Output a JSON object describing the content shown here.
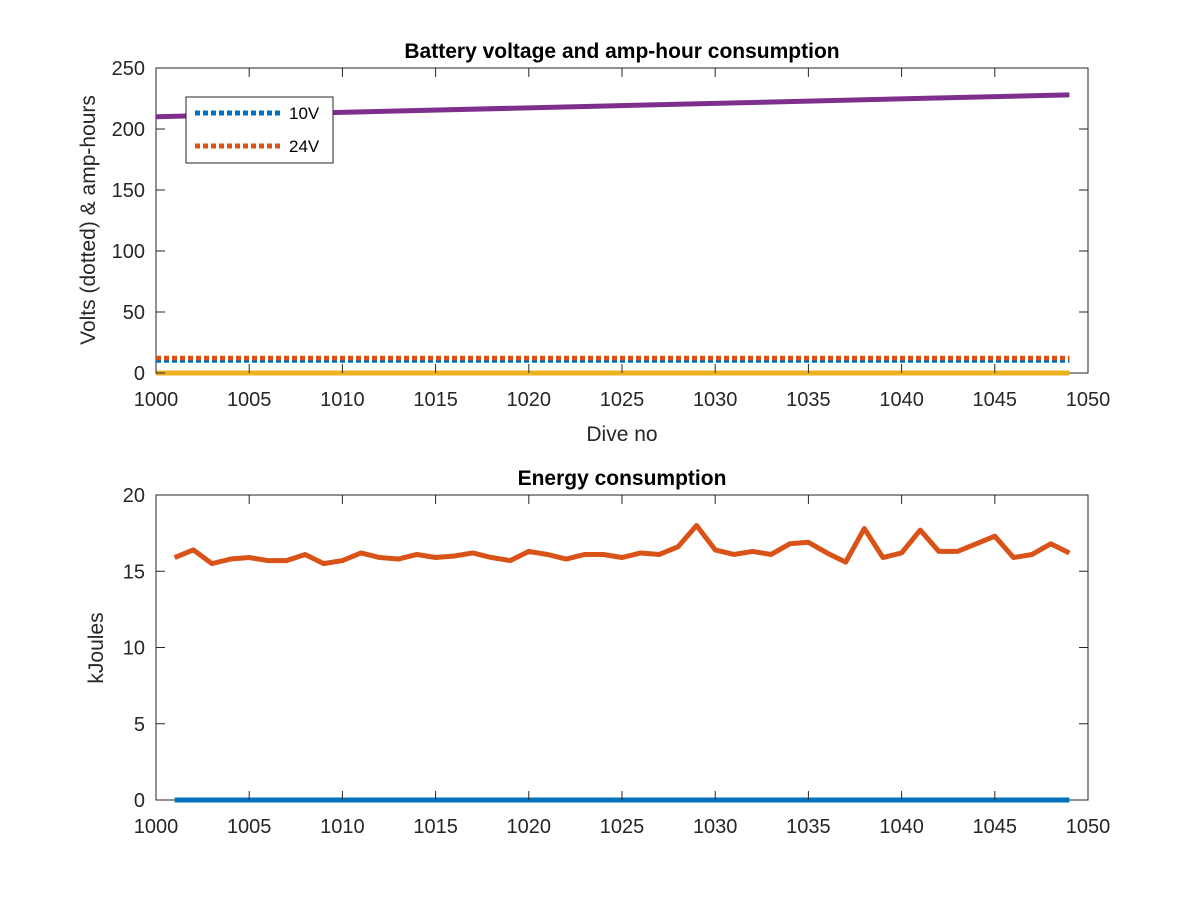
{
  "colors": {
    "blue": "#0072BD",
    "orange": "#D95319",
    "yellow": "#EDB120",
    "purple": "#7E2F8E",
    "axis": "#262626"
  },
  "chart_data": [
    {
      "type": "line",
      "title": "Battery voltage and amp-hour consumption",
      "xlabel": "Dive no",
      "ylabel": "Volts (dotted) & amp-hours",
      "xlim": [
        1000,
        1050
      ],
      "ylim": [
        0,
        250
      ],
      "xticks": [
        1000,
        1005,
        1010,
        1015,
        1020,
        1025,
        1030,
        1035,
        1040,
        1045,
        1050
      ],
      "yticks": [
        0,
        50,
        100,
        150,
        200,
        250
      ],
      "grid": false,
      "legend_position": "top-left",
      "legend": [
        "10V",
        "24V"
      ],
      "x": [
        1000,
        1049
      ],
      "series": [
        {
          "name": "10V",
          "style": "dotted",
          "color": "#0072BD",
          "values": [
            10.2,
            10.2
          ]
        },
        {
          "name": "24V",
          "style": "dotted",
          "color": "#D95319",
          "values": [
            12.3,
            12.3
          ]
        },
        {
          "style": "solid",
          "color": "#EDB120",
          "values": [
            0,
            0
          ]
        },
        {
          "style": "solid",
          "color": "#7E2F8E",
          "values": [
            210,
            228
          ]
        }
      ]
    },
    {
      "type": "line",
      "title": "Energy consumption",
      "xlabel": "",
      "ylabel": "kJoules",
      "xlim": [
        1000,
        1050
      ],
      "ylim": [
        0,
        20
      ],
      "xticks": [
        1000,
        1005,
        1010,
        1015,
        1020,
        1025,
        1030,
        1035,
        1040,
        1045,
        1050
      ],
      "yticks": [
        0,
        5,
        10,
        15,
        20
      ],
      "grid": false,
      "x": [
        1001,
        1002,
        1003,
        1004,
        1005,
        1006,
        1007,
        1008,
        1009,
        1010,
        1011,
        1012,
        1013,
        1014,
        1015,
        1016,
        1017,
        1018,
        1019,
        1020,
        1021,
        1022,
        1023,
        1024,
        1025,
        1026,
        1027,
        1028,
        1029,
        1030,
        1031,
        1032,
        1033,
        1034,
        1035,
        1036,
        1037,
        1038,
        1039,
        1040,
        1041,
        1042,
        1043,
        1044,
        1045,
        1046,
        1047,
        1048,
        1049
      ],
      "series": [
        {
          "style": "solid",
          "color": "#D95319",
          "values": [
            15.9,
            16.4,
            15.5,
            15.8,
            15.9,
            15.7,
            15.7,
            16.1,
            15.5,
            15.7,
            16.2,
            15.9,
            15.8,
            16.1,
            15.9,
            16.0,
            16.2,
            15.9,
            15.7,
            16.3,
            16.1,
            15.8,
            16.1,
            16.1,
            15.9,
            16.2,
            16.1,
            16.6,
            18.0,
            16.4,
            16.1,
            16.3,
            16.1,
            16.8,
            16.9,
            16.2,
            15.6,
            17.8,
            15.9,
            16.2,
            17.7,
            16.3,
            16.3,
            16.8,
            17.3,
            15.9,
            16.1,
            16.8,
            16.2
          ]
        },
        {
          "style": "solid",
          "color": "#0072BD",
          "values": [
            0,
            0,
            0,
            0,
            0,
            0,
            0,
            0,
            0,
            0,
            0,
            0,
            0,
            0,
            0,
            0,
            0,
            0,
            0,
            0,
            0,
            0,
            0,
            0,
            0,
            0,
            0,
            0,
            0,
            0,
            0,
            0,
            0,
            0,
            0,
            0,
            0,
            0,
            0,
            0,
            0,
            0,
            0,
            0,
            0,
            0,
            0,
            0,
            0
          ]
        }
      ]
    }
  ]
}
